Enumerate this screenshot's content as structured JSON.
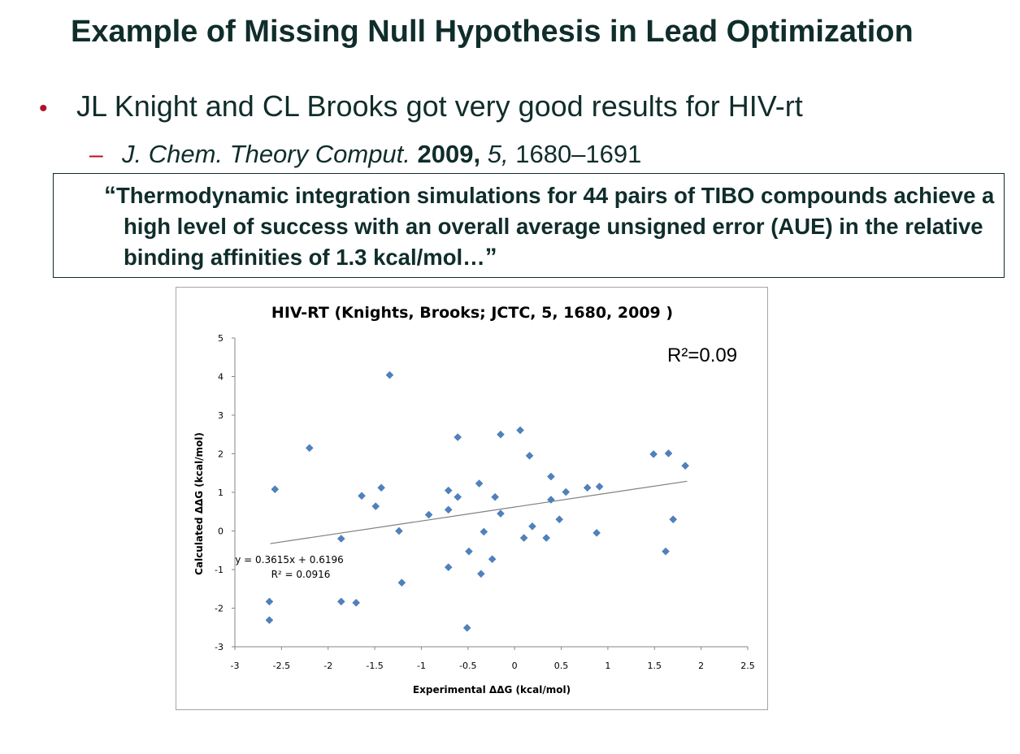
{
  "slide": {
    "title": "Example of Missing Null Hypothesis in Lead Optimization",
    "bullet": "JL Knight and CL Brooks got very good results for HIV-rt",
    "citation": {
      "journal": "J. Chem. Theory Comput.",
      "year": "2009,",
      "volume": "5,",
      "pages": "1680–1691"
    },
    "quote": {
      "open_mark": "“",
      "text": "Thermodynamic integration simulations for 44 pairs of TIBO compounds achieve a high level of success with an overall average unsigned error (AUE) in the relative binding affinities of 1.3 kcal/mol…",
      "close_mark": "”"
    }
  },
  "colors": {
    "title": "#0f2d2b",
    "bullet_accent": "#b0122a",
    "marker": "#4f81bd",
    "trendline": "#7f7f7f"
  },
  "chart_data": {
    "type": "scatter",
    "title": "HIV-RT (Knights, Brooks;  JCTC, 5, 1680, 2009 )",
    "xlabel": "Experimental ΔΔG (kcal/mol)",
    "ylabel": "Calculated ΔΔG (kcal/mol)",
    "xlim": [
      -3,
      2.5
    ],
    "ylim": [
      -3,
      5
    ],
    "xticks": [
      "-3",
      "-2.5",
      "-2",
      "-1.5",
      "-1",
      "-0.5",
      "0",
      "0.5",
      "1",
      "1.5",
      "2",
      "2.5"
    ],
    "yticks": [
      "5",
      "4",
      "3",
      "2",
      "1",
      "0",
      "-1",
      "-2",
      "-3"
    ],
    "grid": false,
    "marker": "diamond",
    "r2_label": "R²=0.09",
    "trendline": {
      "slope": 0.3615,
      "intercept": 0.6196,
      "x_range": [
        -2.62,
        1.85
      ],
      "equation": "y = 0.3615x + 0.6196",
      "r2": "R² = 0.0916"
    },
    "points": [
      {
        "x": -2.63,
        "y": -1.83
      },
      {
        "x": -2.63,
        "y": -2.31
      },
      {
        "x": -2.57,
        "y": 1.08
      },
      {
        "x": -2.2,
        "y": 2.15
      },
      {
        "x": -1.86,
        "y": -0.2
      },
      {
        "x": -1.86,
        "y": -1.83
      },
      {
        "x": -1.7,
        "y": -1.86
      },
      {
        "x": -1.64,
        "y": 0.91
      },
      {
        "x": -1.49,
        "y": 0.64
      },
      {
        "x": -1.43,
        "y": 1.12
      },
      {
        "x": -1.34,
        "y": 4.04
      },
      {
        "x": -1.24,
        "y": 0.0
      },
      {
        "x": -1.21,
        "y": -1.34
      },
      {
        "x": -0.92,
        "y": 0.42
      },
      {
        "x": -0.71,
        "y": 1.05
      },
      {
        "x": -0.71,
        "y": 0.55
      },
      {
        "x": -0.71,
        "y": -0.94
      },
      {
        "x": -0.61,
        "y": 2.43
      },
      {
        "x": -0.61,
        "y": 0.88
      },
      {
        "x": -0.49,
        "y": -0.53
      },
      {
        "x": -0.51,
        "y": -2.51
      },
      {
        "x": -0.38,
        "y": 1.23
      },
      {
        "x": -0.36,
        "y": -1.11
      },
      {
        "x": -0.33,
        "y": -0.02
      },
      {
        "x": -0.24,
        "y": -0.73
      },
      {
        "x": -0.21,
        "y": 0.88
      },
      {
        "x": -0.15,
        "y": 2.5
      },
      {
        "x": -0.15,
        "y": 0.45
      },
      {
        "x": 0.06,
        "y": 2.61
      },
      {
        "x": 0.1,
        "y": -0.18
      },
      {
        "x": 0.16,
        "y": 1.95
      },
      {
        "x": 0.19,
        "y": 0.12
      },
      {
        "x": 0.34,
        "y": -0.18
      },
      {
        "x": 0.39,
        "y": 1.41
      },
      {
        "x": 0.39,
        "y": 0.81
      },
      {
        "x": 0.48,
        "y": 0.3
      },
      {
        "x": 0.55,
        "y": 1.01
      },
      {
        "x": 0.78,
        "y": 1.12
      },
      {
        "x": 0.88,
        "y": -0.05
      },
      {
        "x": 0.91,
        "y": 1.15
      },
      {
        "x": 1.49,
        "y": 1.99
      },
      {
        "x": 1.62,
        "y": -0.53
      },
      {
        "x": 1.65,
        "y": 2.01
      },
      {
        "x": 1.7,
        "y": 0.3
      },
      {
        "x": 1.83,
        "y": 1.69
      }
    ]
  }
}
